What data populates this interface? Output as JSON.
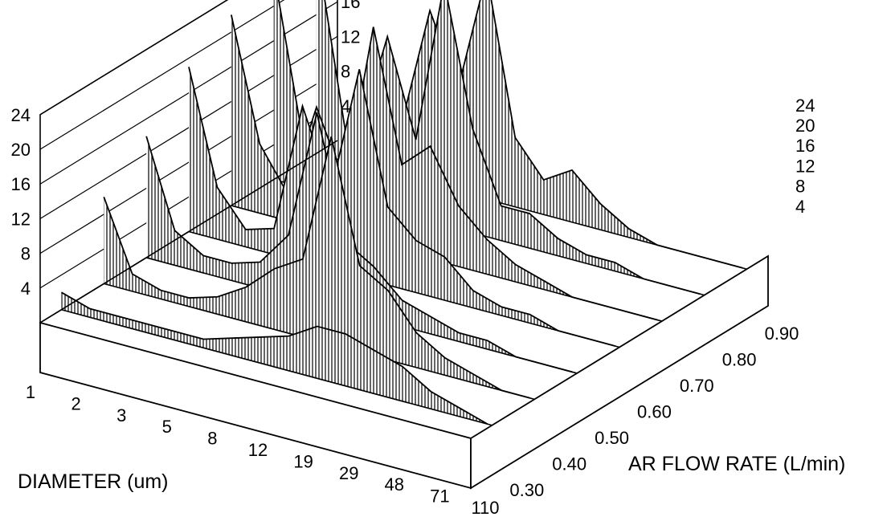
{
  "chart_data": {
    "type": "area",
    "projection": "3d-waterfall",
    "xlabel": "DIAMETER (um)",
    "ylabel": "AR FLOW RATE (L/min)",
    "zlabel": "",
    "x_ticks": [
      "1",
      "2",
      "3",
      "5",
      "8",
      "12",
      "19",
      "29",
      "48",
      "71",
      "110"
    ],
    "y_ticks": [
      "0.30",
      "0.40",
      "0.50",
      "0.60",
      "0.70",
      "0.80",
      "0.90"
    ],
    "z_ticks": [
      "4",
      "8",
      "12",
      "16",
      "20",
      "24"
    ],
    "zlim": [
      0,
      24
    ],
    "series": [
      {
        "flow_rate": 0.3,
        "values": [
          2,
          1,
          1,
          1,
          1,
          1,
          2,
          3,
          4,
          6,
          6,
          5,
          4,
          2,
          1,
          0
        ]
      },
      {
        "flow_rate": 0.4,
        "values": [
          10,
          2,
          1,
          1,
          2,
          4,
          7,
          9,
          24,
          10,
          8,
          4,
          2,
          1,
          0,
          0
        ]
      },
      {
        "flow_rate": 0.5,
        "values": [
          14,
          4,
          2,
          2,
          3,
          7,
          22,
          8,
          6,
          3,
          2,
          1,
          1,
          0,
          0,
          0
        ]
      },
      {
        "flow_rate": 0.6,
        "values": [
          19,
          6,
          2,
          3,
          18,
          9,
          24,
          9,
          6,
          5,
          2,
          1,
          1,
          0,
          0,
          0
        ]
      },
      {
        "flow_rate": 0.7,
        "values": [
          22,
          8,
          3,
          14,
          6,
          25,
          10,
          13,
          7,
          4,
          2,
          1,
          0,
          0,
          0,
          0
        ]
      },
      {
        "flow_rate": 0.8,
        "values": [
          24,
          6,
          2,
          8,
          20,
          9,
          28,
          12,
          4,
          4,
          2,
          1,
          1,
          0,
          0,
          0
        ]
      },
      {
        "flow_rate": 0.9,
        "values": [
          24,
          4,
          2,
          6,
          20,
          12,
          26,
          8,
          4,
          6,
          3,
          1,
          0,
          0,
          0,
          0
        ]
      }
    ]
  }
}
